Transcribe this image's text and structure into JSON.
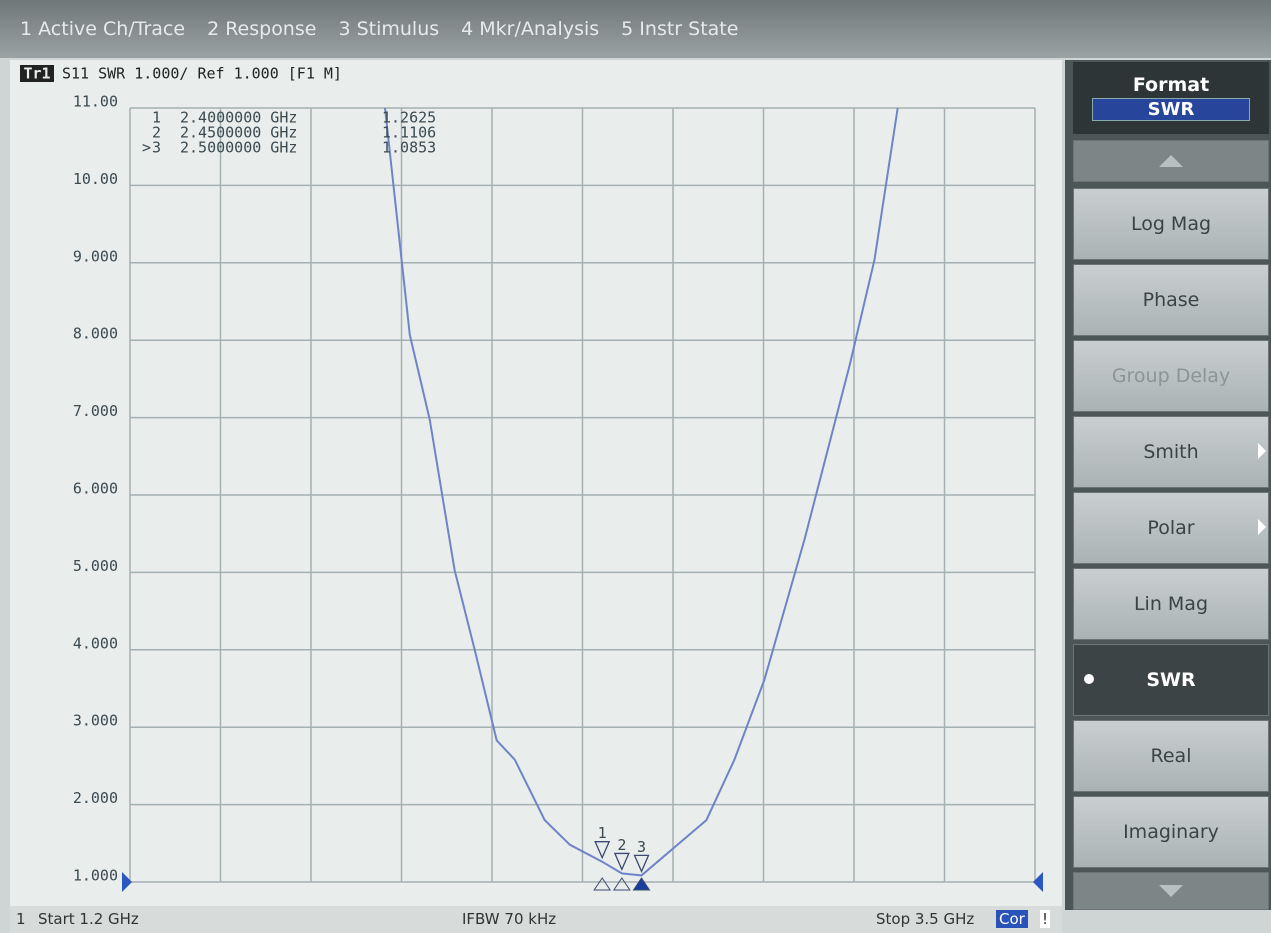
{
  "menu": [
    "1 Active Ch/Trace",
    "2 Response",
    "3 Stimulus",
    "4 Mkr/Analysis",
    "5 Instr State"
  ],
  "trace_header": {
    "badge": "Tr1",
    "text": "S11  SWR 1.000/ Ref 1.000 [F1 M]"
  },
  "chart_data": {
    "type": "line",
    "x": [
      1.848,
      1.911,
      1.962,
      2.025,
      2.076,
      2.132,
      2.178,
      2.254,
      2.318,
      2.4,
      2.45,
      2.5,
      2.665,
      2.736,
      2.812,
      2.914,
      3.029,
      3.092,
      3.151
    ],
    "series": [
      {
        "color": "#6f84c8",
        "values": [
          11,
          8.07,
          6.97,
          5.03,
          4.0,
          2.83,
          2.58,
          1.8,
          1.48,
          1.2625,
          1.1106,
          1.0853,
          1.8,
          2.58,
          3.61,
          5.42,
          7.68,
          9.04,
          11
        ]
      }
    ],
    "xlim": [
      1.2,
      3.5
    ],
    "xticks": [
      1.2,
      1.43,
      1.66,
      1.89,
      2.12,
      2.35,
      2.58,
      2.81,
      3.04,
      3.27,
      3.5
    ],
    "ylim": [
      1,
      11
    ],
    "yticks": [
      {
        "value": 1,
        "label": "1.000"
      },
      {
        "value": 2,
        "label": "2.000"
      },
      {
        "value": 3,
        "label": "3.000"
      },
      {
        "value": 4,
        "label": "4.000"
      },
      {
        "value": 5,
        "label": "5.000"
      },
      {
        "value": 6,
        "label": "6.000"
      },
      {
        "value": 7,
        "label": "7.000"
      },
      {
        "value": 8,
        "label": "8.000"
      },
      {
        "value": 9,
        "label": "9.000"
      },
      {
        "value": 10,
        "label": "10.00"
      },
      {
        "value": 11,
        "label": "11.00"
      }
    ],
    "grid": true,
    "active_indicator": ">",
    "markers": [
      {
        "id": "1",
        "x": 2.4,
        "x_label": "2.4000000 GHz",
        "y": 1.2625
      },
      {
        "id": "2",
        "x": 2.45,
        "x_label": "2.4500000 GHz",
        "y": 1.1106
      },
      {
        "id": "3",
        "x": 2.5,
        "x_label": "2.5000000 GHz",
        "y": 1.0853
      }
    ]
  },
  "softkeys": {
    "title": "Format",
    "current": "SWR",
    "items": [
      "Log Mag",
      "Phase",
      "Group Delay",
      "Smith",
      "Polar",
      "Lin Mag",
      "SWR",
      "Real",
      "Imaginary"
    ]
  },
  "status": {
    "channel": "1",
    "start": "Start 1.2 GHz",
    "ifbw": "IFBW 70 kHz",
    "stop": "Stop 3.5 GHz",
    "cor": "Cor",
    "warn": "!"
  }
}
